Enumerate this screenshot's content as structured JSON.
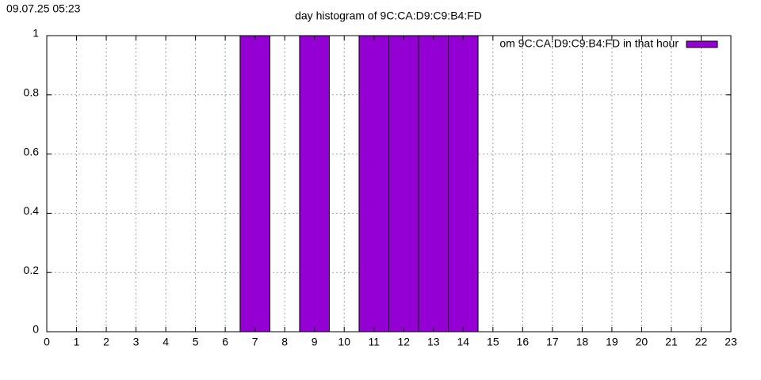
{
  "timestamp": "09.07.25 05:23",
  "chart_data": {
    "type": "bar",
    "title": "day histogram of 9C:CA:D9:C9:B4:FD",
    "x": [
      0,
      1,
      2,
      3,
      4,
      5,
      6,
      7,
      8,
      9,
      10,
      11,
      12,
      13,
      14,
      15,
      16,
      17,
      18,
      19,
      20,
      21,
      22,
      23
    ],
    "series": [
      {
        "name": "om 9C:CA:D9:C9:B4:FD in that hour",
        "color": "#9400d3",
        "values": [
          0,
          0,
          0,
          0,
          0,
          0,
          0,
          1,
          0,
          1,
          0,
          1,
          1,
          1,
          1,
          0,
          0,
          0,
          0,
          0,
          0,
          0,
          0,
          0
        ]
      }
    ],
    "xlim": [
      0,
      23
    ],
    "xticks": [
      0,
      1,
      2,
      3,
      4,
      5,
      6,
      7,
      8,
      9,
      10,
      11,
      12,
      13,
      14,
      15,
      16,
      17,
      18,
      19,
      20,
      21,
      22,
      23
    ],
    "ylim": [
      0,
      1
    ],
    "yticks": [
      0,
      0.2,
      0.4,
      0.6,
      0.8,
      1
    ],
    "grid": true,
    "legend": "top-right"
  }
}
